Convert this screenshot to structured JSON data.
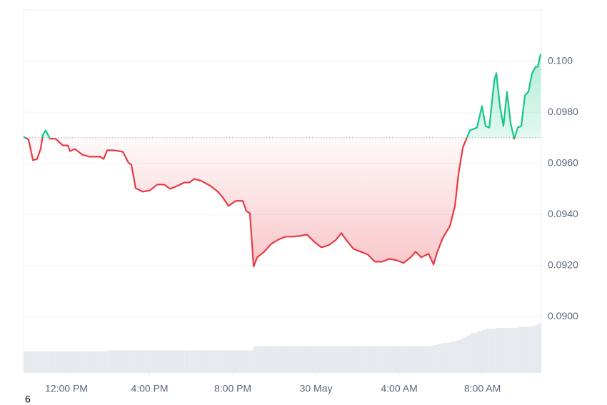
{
  "chart_data": {
    "type": "baseline",
    "corner_text": "6",
    "x": [
      -2.06,
      -1.82,
      -1.61,
      -1.41,
      -1.24,
      -1.13,
      -1.0,
      -0.79,
      -0.52,
      -0.17,
      0.07,
      0.17,
      0.41,
      0.76,
      1.1,
      1.61,
      1.79,
      1.96,
      2.3,
      2.71,
      2.99,
      3.12,
      3.33,
      3.67,
      4.02,
      4.36,
      4.7,
      4.98,
      5.32,
      5.67,
      5.91,
      6.15,
      6.49,
      6.94,
      7.28,
      7.52,
      7.79,
      8.14,
      8.48,
      8.65,
      8.82,
      9.0,
      9.17,
      9.51,
      9.85,
      10.2,
      10.54,
      10.88,
      11.23,
      11.57,
      11.91,
      12.26,
      12.6,
      12.94,
      13.22,
      13.46,
      13.8,
      14.15,
      14.49,
      14.83,
      15.18,
      15.52,
      15.86,
      16.21,
      16.55,
      16.79,
      17.06,
      17.41,
      17.65,
      17.82,
      18.09,
      18.44,
      18.68,
      18.85,
      19.06,
      19.23,
      19.4,
      19.74,
      19.98,
      20.15,
      20.33,
      20.57,
      20.67,
      20.84,
      21.01,
      21.18,
      21.36,
      21.53,
      21.7,
      21.87,
      22.04,
      22.21,
      22.39,
      22.56,
      22.66,
      22.8
    ],
    "values": [
      0.09704,
      0.09693,
      0.09612,
      0.09617,
      0.09656,
      0.09712,
      0.09729,
      0.09696,
      0.09696,
      0.0967,
      0.0967,
      0.09648,
      0.09656,
      0.09634,
      0.09626,
      0.09626,
      0.09617,
      0.09651,
      0.09651,
      0.09645,
      0.09601,
      0.09595,
      0.09503,
      0.09489,
      0.09494,
      0.09517,
      0.09517,
      0.095,
      0.09511,
      0.09525,
      0.09525,
      0.09539,
      0.09531,
      0.09511,
      0.09489,
      0.09466,
      0.09433,
      0.09453,
      0.09453,
      0.09413,
      0.09405,
      0.09196,
      0.09232,
      0.09254,
      0.09285,
      0.09302,
      0.09313,
      0.09313,
      0.09316,
      0.09321,
      0.09293,
      0.09271,
      0.09279,
      0.09299,
      0.09327,
      0.09299,
      0.09265,
      0.09254,
      0.09243,
      0.09215,
      0.09215,
      0.09226,
      0.09221,
      0.0921,
      0.09232,
      0.09254,
      0.09232,
      0.09246,
      0.09204,
      0.09251,
      0.09307,
      0.09355,
      0.09433,
      0.09559,
      0.09662,
      0.09696,
      0.09729,
      0.0974,
      0.09824,
      0.09746,
      0.0974,
      0.09925,
      0.09953,
      0.09824,
      0.09746,
      0.0988,
      0.09754,
      0.09696,
      0.0974,
      0.09746,
      0.09866,
      0.0988,
      0.09953,
      0.09978,
      0.09978,
      0.10028
    ],
    "volume": [
      20,
      20,
      20,
      20,
      20,
      20,
      20,
      20,
      20,
      20,
      20,
      20,
      20,
      20,
      20,
      20,
      20,
      21,
      21,
      21,
      21,
      21,
      21,
      21,
      21,
      21,
      21,
      21,
      21,
      21,
      21,
      21,
      21,
      21,
      21,
      21,
      21,
      21,
      21,
      21,
      21,
      25,
      25,
      25,
      25,
      25,
      25,
      25,
      25,
      25,
      25,
      25,
      25,
      25,
      25,
      25,
      25,
      25,
      25,
      25,
      25,
      25,
      25,
      25,
      25,
      25,
      25,
      25,
      26,
      27,
      28,
      29,
      30,
      31,
      33,
      35,
      37,
      39,
      40,
      41,
      41,
      41,
      42,
      42,
      42,
      42,
      42,
      42,
      43,
      43,
      43,
      43,
      44,
      45,
      46,
      47
    ],
    "volume_lim": [
      0,
      100
    ],
    "baseline": 0.097,
    "up_color": "#16c784",
    "down_color": "#ea3943",
    "volume_color": "#e6e9ee",
    "xlim": [
      -2.06,
      22.83
    ],
    "xticks": [
      {
        "value": 0,
        "label": "12:00 PM"
      },
      {
        "value": 4,
        "label": "4:00 PM"
      },
      {
        "value": 8,
        "label": "8:00 PM"
      },
      {
        "value": 12,
        "label": "30 May"
      },
      {
        "value": 16,
        "label": "4:00 AM"
      },
      {
        "value": 20,
        "label": "8:00 AM"
      }
    ],
    "ylim": [
      0.0878,
      0.102
    ],
    "yticks": [
      {
        "value": 0.09,
        "label": "0.0900"
      },
      {
        "value": 0.092,
        "label": "0.0920"
      },
      {
        "value": 0.094,
        "label": "0.0940"
      },
      {
        "value": 0.096,
        "label": "0.0960"
      },
      {
        "value": 0.098,
        "label": "0.0980"
      },
      {
        "value": 0.1,
        "label": "0.100"
      }
    ],
    "grid": true
  }
}
